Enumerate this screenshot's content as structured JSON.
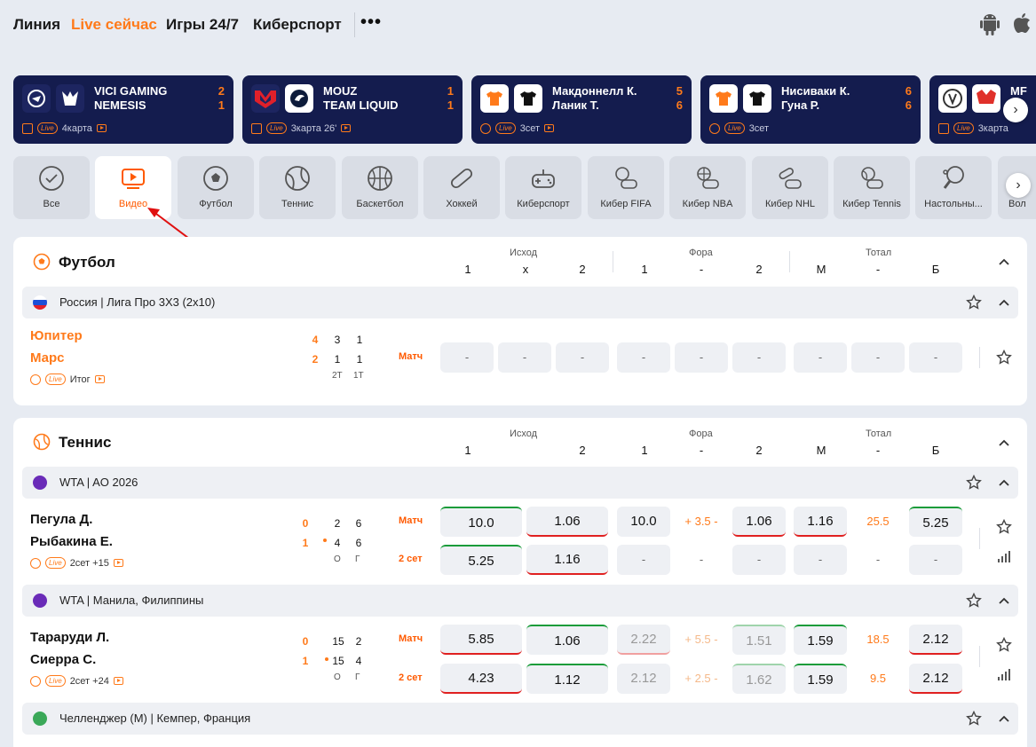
{
  "nav": {
    "items": [
      "Линия",
      "Live сейчас",
      "Игры 24/7",
      "Киберспорт"
    ],
    "more": "•••"
  },
  "icons": {
    "android": "android-icon",
    "apple": "apple-icon"
  },
  "colors": {
    "accent": "#ff7a1a",
    "card_bg": "#141c4e",
    "up": "#1a9c3a",
    "down": "#e02020"
  },
  "live_cards": [
    {
      "team1": "VICI GAMING",
      "team2": "NEMESIS",
      "score1": "2",
      "score2": "1",
      "info": "4карта"
    },
    {
      "team1": "MOUZ",
      "team2": "TEAM LIQUID",
      "score1": "1",
      "score2": "1",
      "info": "3карта 26'"
    },
    {
      "team1": "Макдоннелл К.",
      "team2": "Ланик Т.",
      "score1": "5",
      "score2": "6",
      "info": "3сет"
    },
    {
      "team1": "Нисиваки К.",
      "team2": "Гуна Р.",
      "score1": "6",
      "score2": "6",
      "info": "3сет"
    },
    {
      "team1": "MF",
      "team2": "",
      "score1": "",
      "score2": "",
      "info": "3карта"
    }
  ],
  "live_badge": "Live",
  "sports": [
    "Все",
    "Видео",
    "Футбол",
    "Теннис",
    "Баскетбол",
    "Хоккей",
    "Киберспорт",
    "Кибер FIFA",
    "Кибер NBA",
    "Кибер NHL",
    "Кибер Tennis",
    "Настольны...",
    "Вол"
  ],
  "football": {
    "title": "Футбол",
    "groups": {
      "outcome": "Исход",
      "handicap": "Фора",
      "total": "Тотал"
    },
    "cols": [
      "1",
      "x",
      "2",
      "1",
      "-",
      "2",
      "М",
      "-",
      "Б"
    ],
    "league": "Россия | Лига Про 3Х3 (2х10)",
    "match": {
      "team1": "Юпитер",
      "team2": "Марс",
      "score1": "4",
      "score2": "2",
      "p1a": "3",
      "p1b": "1",
      "p2a": "1",
      "p2b": "1",
      "h1": "2Т",
      "h2": "1Т",
      "status": "Итог",
      "market": "Матч",
      "odds": [
        "-",
        "-",
        "-",
        "-",
        "-",
        "-",
        "-",
        "-",
        "-"
      ]
    }
  },
  "tennis": {
    "title": "Теннис",
    "groups": {
      "outcome": "Исход",
      "handicap": "Фора",
      "total": "Тотал"
    },
    "cols": [
      "1",
      "2",
      "1",
      "-",
      "2",
      "М",
      "-",
      "Б"
    ],
    "leagues": [
      {
        "name": "WTA | AO 2026",
        "team1": "Пегула Д.",
        "team2": "Рыбакина Е.",
        "score1": "0",
        "score2": "1",
        "g1": "2",
        "s1": "6",
        "g2": "4",
        "s2": "6",
        "h1": "О",
        "h2": "Г",
        "status": "2сет +15",
        "rows": [
          {
            "market": "Матч",
            "o1": "10.0",
            "o2": "1.06",
            "f1": "10.0",
            "fmid": "+ 3.5 -",
            "f2": "1.06",
            "tm": "1.16",
            "tmid": "25.5",
            "tb": "5.25"
          },
          {
            "market": "2 сет",
            "o1": "5.25",
            "o2": "1.16",
            "f1": "-",
            "fmid": "-",
            "f2": "-",
            "tm": "-",
            "tmid": "-",
            "tb": "-"
          }
        ]
      },
      {
        "name": "WTA | Манила, Филиппины",
        "team1": "Тараруди Л.",
        "team2": "Сиерра С.",
        "score1": "0",
        "score2": "1",
        "g1": "15",
        "s1": "2",
        "g2": "15",
        "s2": "4",
        "h1": "О",
        "h2": "Г",
        "status": "2сет +24",
        "rows": [
          {
            "market": "Матч",
            "o1": "5.85",
            "o2": "1.06",
            "f1": "2.22",
            "fmid": "+ 5.5 -",
            "f2": "1.51",
            "tm": "1.59",
            "tmid": "18.5",
            "tb": "2.12"
          },
          {
            "market": "2 сет",
            "o1": "4.23",
            "o2": "1.12",
            "f1": "2.12",
            "fmid": "+ 2.5 -",
            "f2": "1.62",
            "tm": "1.59",
            "tmid": "9.5",
            "tb": "2.12"
          }
        ]
      },
      {
        "name": "Челленджер (М) | Кемпер, Франция"
      }
    ]
  }
}
